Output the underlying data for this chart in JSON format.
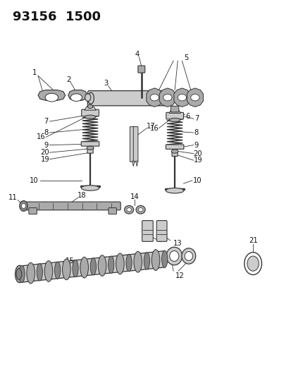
{
  "title": "93156  1500",
  "bg_color": "#ffffff",
  "title_fontsize": 13,
  "fig_width": 4.14,
  "fig_height": 5.33,
  "dpi": 100
}
